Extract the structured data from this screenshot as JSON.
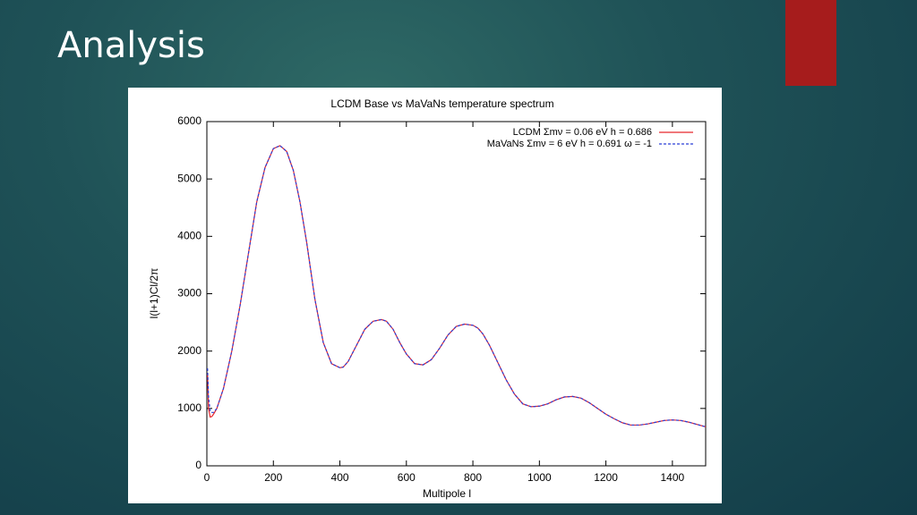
{
  "slide": {
    "title": "Analysis"
  },
  "chart_data": {
    "type": "line",
    "title": "LCDM Base vs MaVaNs  temperature spectrum",
    "x_label": "Multipole l",
    "y_label": "l(l+1)Cl/2π",
    "xlim": [
      0,
      1500
    ],
    "ylim": [
      0,
      6000
    ],
    "xticks": [
      0,
      200,
      400,
      600,
      800,
      1000,
      1200,
      1400
    ],
    "yticks": [
      0,
      1000,
      2000,
      3000,
      4000,
      5000,
      6000
    ],
    "legend": "upper right",
    "x": [
      2,
      5,
      10,
      15,
      20,
      30,
      50,
      75,
      100,
      125,
      150,
      175,
      200,
      220,
      240,
      260,
      280,
      300,
      325,
      350,
      375,
      400,
      410,
      425,
      450,
      475,
      500,
      525,
      540,
      560,
      580,
      600,
      625,
      650,
      675,
      700,
      725,
      750,
      775,
      800,
      815,
      830,
      850,
      875,
      900,
      925,
      950,
      975,
      1000,
      1025,
      1050,
      1075,
      1100,
      1125,
      1150,
      1175,
      1200,
      1225,
      1250,
      1275,
      1300,
      1325,
      1350,
      1375,
      1400,
      1425,
      1450,
      1475,
      1500
    ],
    "series": [
      {
        "name": "LCDM Σmν = 0.06 eV h = 0.686",
        "color": "#e8262b",
        "dash": false,
        "values": [
          1600,
          1000,
          850,
          860,
          900,
          1000,
          1350,
          2000,
          2800,
          3700,
          4600,
          5200,
          5530,
          5580,
          5480,
          5150,
          4600,
          3900,
          2900,
          2150,
          1780,
          1710,
          1720,
          1820,
          2100,
          2380,
          2520,
          2550,
          2520,
          2380,
          2150,
          1950,
          1780,
          1760,
          1850,
          2050,
          2280,
          2430,
          2470,
          2450,
          2400,
          2300,
          2100,
          1800,
          1500,
          1250,
          1080,
          1030,
          1040,
          1080,
          1150,
          1200,
          1210,
          1180,
          1100,
          1000,
          900,
          820,
          750,
          710,
          710,
          730,
          760,
          790,
          800,
          790,
          760,
          720,
          680
        ]
      },
      {
        "name": "MaVaNs Σmν = 6 eV h = 0.691 ω = -1",
        "color": "#2b3fd6",
        "dash": true,
        "values": [
          1700,
          1200,
          950,
          930,
          930,
          1000,
          1350,
          2000,
          2800,
          3700,
          4600,
          5200,
          5530,
          5580,
          5480,
          5150,
          4600,
          3900,
          2900,
          2150,
          1780,
          1710,
          1720,
          1820,
          2100,
          2380,
          2520,
          2550,
          2520,
          2380,
          2150,
          1950,
          1780,
          1760,
          1850,
          2050,
          2280,
          2430,
          2470,
          2450,
          2400,
          2300,
          2100,
          1800,
          1500,
          1250,
          1080,
          1030,
          1040,
          1080,
          1150,
          1200,
          1210,
          1180,
          1100,
          1000,
          900,
          820,
          750,
          710,
          710,
          730,
          760,
          790,
          800,
          790,
          760,
          720,
          680
        ]
      }
    ]
  }
}
